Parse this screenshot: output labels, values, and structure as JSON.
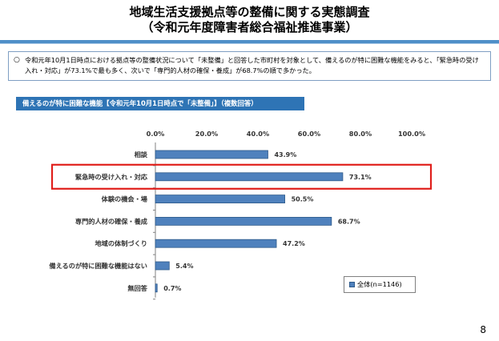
{
  "header": {
    "title_line1": "地域生活支援拠点等の整備に関する実態調査",
    "title_line2": "（令和元年度障害者総合福祉推進事業）"
  },
  "summary": {
    "bullet": "○",
    "text": "令和元年10月1日時点における拠点等の整備状況について「未整備」と回答した市町村を対象として、備えるのが特に困難な機能をみると、「緊急時の受け入れ・対応」が73.1%で最も多く、次いで「専門的人材の確保・養成」が68.7%の順で多かった。"
  },
  "chart_data": {
    "type": "bar",
    "orientation": "horizontal",
    "title": "備えるのが特に困難な機能【令和元年10月1日時点で「未整備」】（複数回答）",
    "categories": [
      "相談",
      "緊急時の受け入れ・対応",
      "体験の機会・場",
      "専門的人材の確保・養成",
      "地域の体制づくり",
      "備えるのが特に困難な機能はない",
      "無回答"
    ],
    "series": [
      {
        "name": "全体(n=1146)",
        "values": [
          43.9,
          73.1,
          50.5,
          68.7,
          47.2,
          5.4,
          0.7
        ]
      }
    ],
    "value_labels": [
      "43.9%",
      "73.1%",
      "50.5%",
      "68.7%",
      "47.2%",
      "5.4%",
      "0.7%"
    ],
    "x_ticks": [
      "0.0%",
      "20.0%",
      "40.0%",
      "60.0%",
      "80.0%",
      "100.0%"
    ],
    "xlim": [
      0,
      100
    ],
    "grid": false,
    "legend_position": "bottom-right",
    "highlight_category": "緊急時の受け入れ・対応",
    "colors": {
      "bar": "#4f81bd",
      "bar_edge": "#2e5a8a",
      "highlight": "#e0201c"
    }
  },
  "page": {
    "number": "8"
  }
}
